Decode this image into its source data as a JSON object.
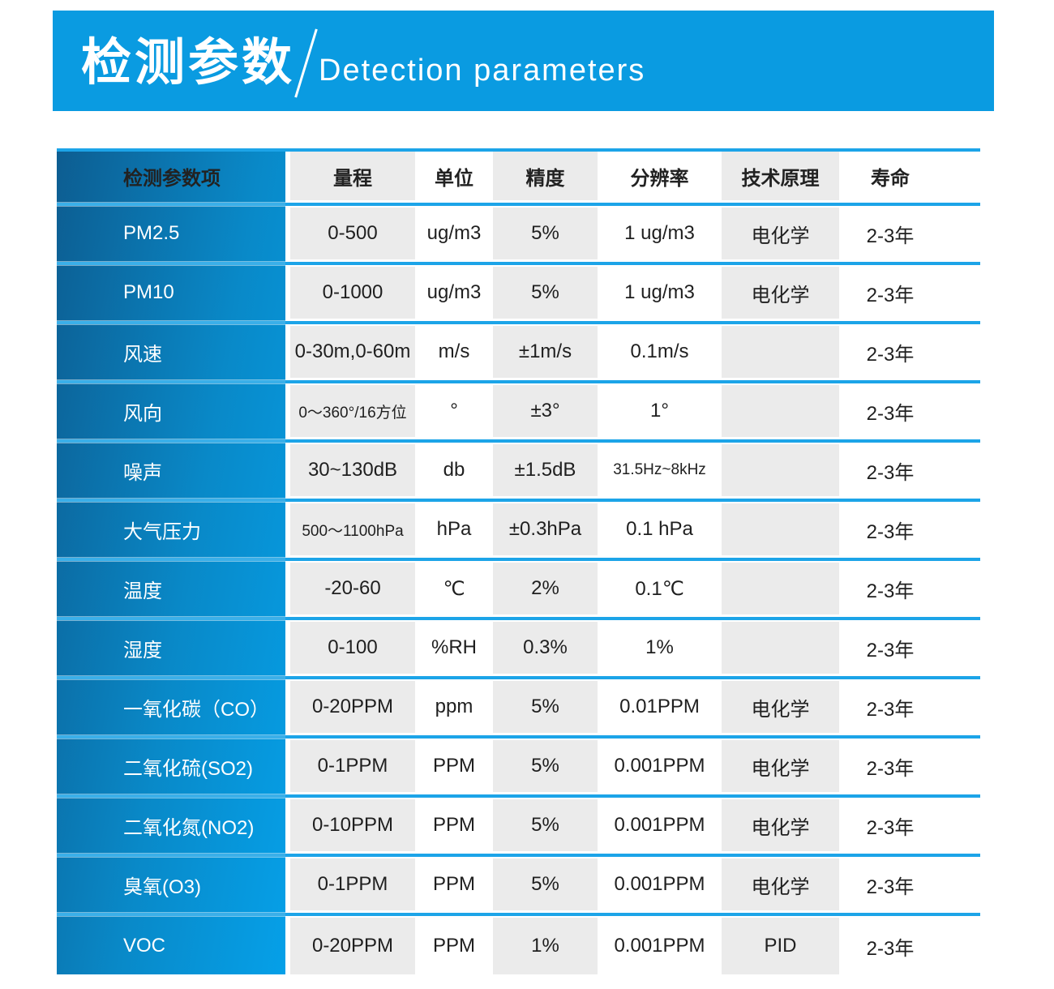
{
  "banner": {
    "title_zh": "检测参数",
    "title_en": "Detection parameters"
  },
  "colors": {
    "banner_blue": "#0A9BE1",
    "divider_blue": "#1CA4E8",
    "param_gradient_start": "#0D5D91",
    "param_gradient_end": "#05A0E8",
    "column_gray": "#EBEBEB",
    "text_dark": "#1F1F1F"
  },
  "table": {
    "headers": [
      "检测参数项",
      "量程",
      "单位",
      "精度",
      "分辨率",
      "技术原理",
      "寿命"
    ],
    "rows": [
      {
        "param": "PM2.5",
        "range": "0-500",
        "unit": "ug/m3",
        "accuracy": "5%",
        "resolution": "1 ug/m3",
        "principle": "电化学",
        "life": "2-3年"
      },
      {
        "param": "PM10",
        "range": "0-1000",
        "unit": "ug/m3",
        "accuracy": "5%",
        "resolution": "1 ug/m3",
        "principle": "电化学",
        "life": "2-3年"
      },
      {
        "param": "风速",
        "range": "0-30m,0-60m",
        "unit": "m/s",
        "accuracy": "±1m/s",
        "resolution": "0.1m/s",
        "principle": "",
        "life": "2-3年"
      },
      {
        "param": "风向",
        "range": "0～360°/16方位",
        "range_small": true,
        "unit": "°",
        "accuracy": "±3°",
        "resolution": "1°",
        "principle": "",
        "life": "2-3年"
      },
      {
        "param": "噪声",
        "range": "30~130dB",
        "unit": "db",
        "accuracy": "±1.5dB",
        "resolution": "31.5Hz~8kHz",
        "resolution_small": true,
        "principle": "",
        "life": "2-3年"
      },
      {
        "param": "大气压力",
        "range": "500～1100hPa",
        "range_small": true,
        "unit": "hPa",
        "accuracy": "±0.3hPa",
        "resolution": "0.1 hPa",
        "principle": "",
        "life": "2-3年"
      },
      {
        "param": "温度",
        "range": "-20-60",
        "unit": "℃",
        "accuracy": "2%",
        "resolution": "0.1℃",
        "principle": "",
        "life": "2-3年"
      },
      {
        "param": "湿度",
        "range": "0-100",
        "unit": "%RH",
        "accuracy": "0.3%",
        "resolution": "1%",
        "principle": "",
        "life": "2-3年"
      },
      {
        "param": "一氧化碳（CO）",
        "range": "0-20PPM",
        "unit": "ppm",
        "accuracy": "5%",
        "resolution": "0.01PPM",
        "principle": "电化学",
        "life": "2-3年"
      },
      {
        "param": "二氧化硫(SO2)",
        "range": "0-1PPM",
        "unit": "PPM",
        "accuracy": "5%",
        "resolution": "0.001PPM",
        "principle": "电化学",
        "life": "2-3年"
      },
      {
        "param": "二氧化氮(NO2)",
        "range": "0-10PPM",
        "unit": "PPM",
        "accuracy": "5%",
        "resolution": "0.001PPM",
        "principle": "电化学",
        "life": "2-3年"
      },
      {
        "param": "臭氧(O3)",
        "range": "0-1PPM",
        "unit": "PPM",
        "accuracy": "5%",
        "resolution": "0.001PPM",
        "principle": "电化学",
        "life": "2-3年"
      },
      {
        "param": "VOC",
        "range": "0-20PPM",
        "unit": "PPM",
        "accuracy": "1%",
        "resolution": "0.001PPM",
        "principle": "PID",
        "life": "2-3年"
      }
    ]
  }
}
